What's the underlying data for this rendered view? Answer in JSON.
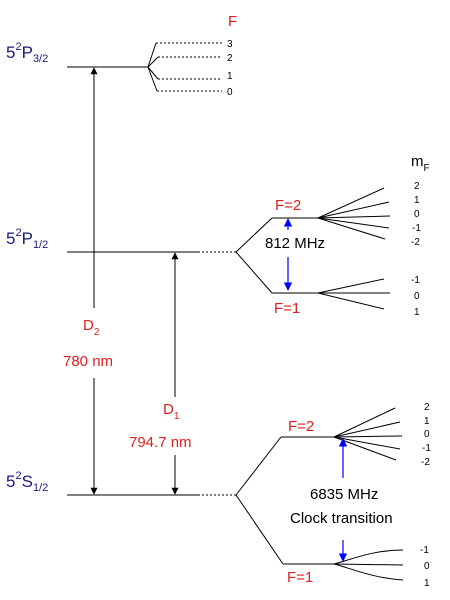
{
  "states": {
    "p32": {
      "main": "5",
      "sup": "2",
      "letter": "P",
      "sub": "3/2"
    },
    "p12": {
      "main": "5",
      "sup": "2",
      "letter": "P",
      "sub": "1/2"
    },
    "s12": {
      "main": "5",
      "sup": "2",
      "letter": "S",
      "sub": "1/2"
    }
  },
  "p32_hyperfine": {
    "header": "F",
    "levels": [
      "3",
      "2",
      "1",
      "0"
    ]
  },
  "mf_header": {
    "main": "m",
    "sub": "F"
  },
  "p12_hyperfine": {
    "upper": {
      "label": "F=2",
      "mf": [
        "2",
        "1",
        "0",
        "-1",
        "-2"
      ]
    },
    "lower": {
      "label": "F=1",
      "mf": [
        "-1",
        "0",
        "1"
      ]
    },
    "splitting": "812 MHz"
  },
  "s12_hyperfine": {
    "upper": {
      "label": "F=2",
      "mf": [
        "2",
        "1",
        "0",
        "-1",
        "-2"
      ]
    },
    "lower": {
      "label": "F=1",
      "mf": [
        "-1",
        "0",
        "1"
      ]
    },
    "splitting": "6835 MHz",
    "note": "Clock transition"
  },
  "d2": {
    "main": "D",
    "sub": "2",
    "wavelength": "780 nm"
  },
  "d1": {
    "main": "D",
    "sub": "1",
    "wavelength": "794.7 nm"
  },
  "colors": {
    "state": "#1a1a80",
    "red": "#e02020",
    "blue": "#0000ff",
    "line": "#000000"
  }
}
